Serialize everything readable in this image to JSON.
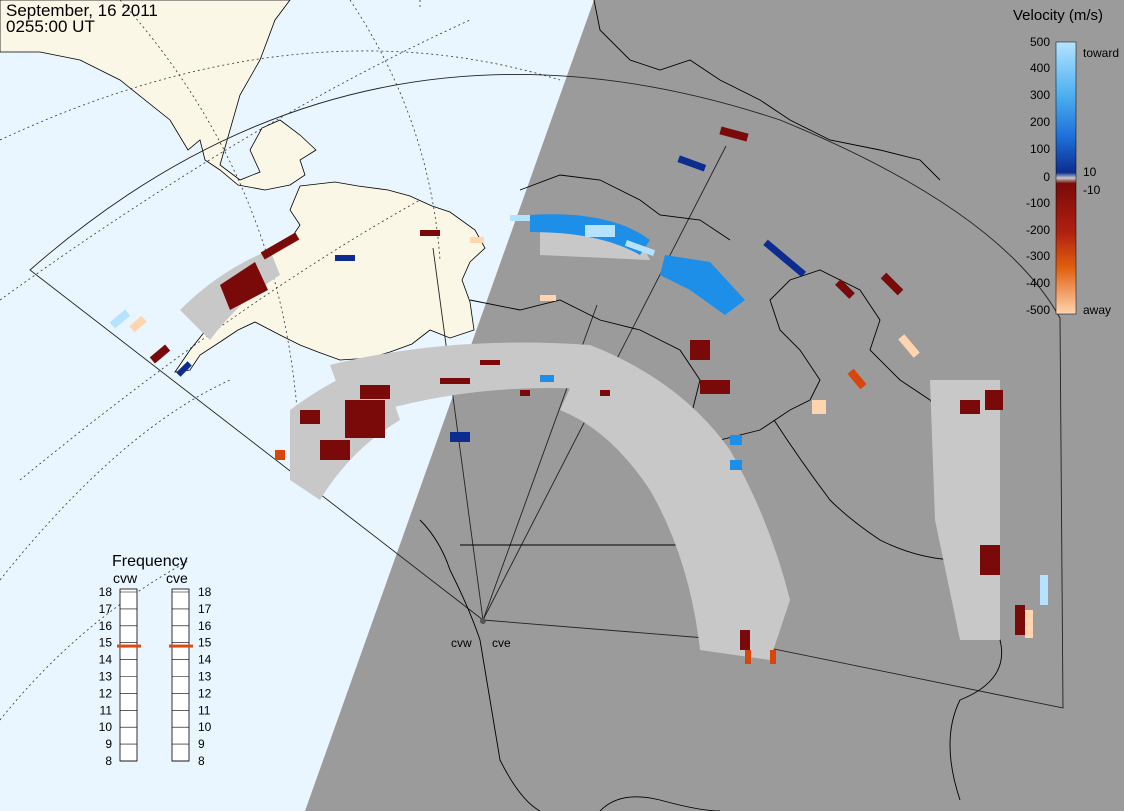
{
  "header": {
    "date": "September, 16 2011",
    "time": "0255:00 UT"
  },
  "sites": {
    "west": "cvw",
    "east": "cve"
  },
  "frequency_panel": {
    "title": "Frequency",
    "columns": [
      "cvw",
      "cve"
    ],
    "scale": [
      "18",
      "17",
      "16",
      "15",
      "14",
      "13",
      "12",
      "11",
      "10",
      "9",
      "8"
    ],
    "cvw_value": 14.8,
    "cve_value": 14.8,
    "marker_color": "#e04a10"
  },
  "legend": {
    "title": "Velocity (m/s)",
    "ticks": [
      "500",
      "400",
      "300",
      "200",
      "100",
      "10",
      "0",
      "-10",
      "-100",
      "-200",
      "-300",
      "-400",
      "-500"
    ],
    "toward_label": "toward",
    "away_label": "away",
    "colors": {
      "toward_light": "#b5e3ff",
      "toward_mid": "#1e8fe8",
      "toward_dark": "#0c2d8f",
      "ground_scatter": "#c8c8c8",
      "away_dark": "#7a0a0a",
      "away_mid": "#d8460c",
      "away_light": "#ffd5b0"
    }
  },
  "colors": {
    "day_sea": "#e9f6ff",
    "day_land": "#fbf7e6",
    "night": "#9b9b9b",
    "coast": "#000000",
    "grid": "#333333"
  }
}
